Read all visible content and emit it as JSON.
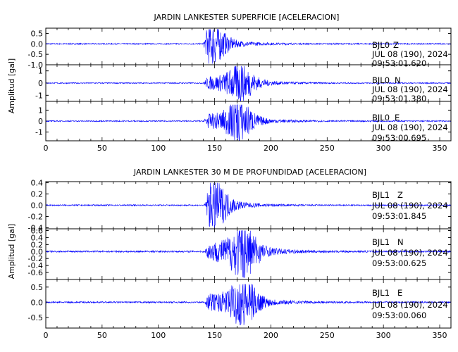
{
  "chart_data": [
    {
      "type": "line",
      "title": "JARDIN LANKESTER SUPERFICIE [ACELERACION]",
      "ylabel": "Amplitud [gal]",
      "xlim": [
        0,
        360
      ],
      "x_ticks": [
        "0",
        "50",
        "100",
        "150",
        "200",
        "250",
        "300",
        "350"
      ],
      "panels": [
        {
          "station": "BJL0",
          "component": "Z",
          "date": "JUL 08 (190), 2024",
          "time": "09:53:01.620",
          "ylim": [
            -1.0,
            0.75
          ],
          "y_ticks": [
            "0.5",
            "0.0",
            "-0.5",
            "-1.0"
          ],
          "onset_s": 140,
          "peak_s": 148,
          "peak_pos": 0.7,
          "peak_neg": -0.95
        },
        {
          "station": "BJL0",
          "component": "N",
          "date": "JUL 08 (190), 2024",
          "time": "09:53:01.380",
          "ylim": [
            -1.5,
            1.5
          ],
          "y_ticks": [
            "1",
            "0",
            "-1"
          ],
          "onset_s": 140,
          "peak_s": 173,
          "peak_pos": 1.4,
          "peak_neg": -1.45
        },
        {
          "station": "BJL0",
          "component": "E",
          "date": "JUL 08 (190), 2024",
          "time": "09:53:00.695",
          "ylim": [
            -1.8,
            1.8
          ],
          "y_ticks": [
            "1",
            "0",
            "-1"
          ],
          "onset_s": 140,
          "peak_s": 172,
          "peak_pos": 1.5,
          "peak_neg": -1.75
        }
      ]
    },
    {
      "type": "line",
      "title": "JARDIN LANKESTER 30 M DE PROFUNDIDAD [ACELERACION]",
      "ylabel": "Amplitud [gal]",
      "xlim": [
        0,
        360
      ],
      "x_ticks": [
        "0",
        "50",
        "100",
        "150",
        "200",
        "250",
        "300",
        "350"
      ],
      "panels": [
        {
          "station": "BJL1",
          "component": "Z",
          "date": "JUL 08 (190), 2024",
          "time": "09:53:01.845",
          "ylim": [
            -0.42,
            0.42
          ],
          "y_ticks": [
            "0.4",
            "0.2",
            "0.0",
            "-0.2",
            "-0.4"
          ],
          "onset_s": 141,
          "peak_s": 150,
          "peak_pos": 0.4,
          "peak_neg": -0.4
        },
        {
          "station": "BJL1",
          "component": "N",
          "date": "JUL 08 (190), 2024",
          "time": "09:53:00.625",
          "ylim": [
            -0.8,
            0.65
          ],
          "y_ticks": [
            "0.6",
            "0.4",
            "0.2",
            "0.0",
            "-0.2",
            "-0.4",
            "-0.6"
          ],
          "onset_s": 141,
          "peak_s": 176,
          "peak_pos": 0.6,
          "peak_neg": -0.75
        },
        {
          "station": "BJL1",
          "component": "E",
          "date": "JUL 08 (190), 2024",
          "time": "09:53:00.060",
          "ylim": [
            -0.85,
            0.75
          ],
          "y_ticks": [
            "0.5",
            "0.0",
            "-0.5"
          ],
          "onset_s": 141,
          "peak_s": 176,
          "peak_pos": 0.6,
          "peak_neg": -0.75
        }
      ]
    }
  ],
  "colors": {
    "trace": "#0000ff",
    "axes": "#000000"
  }
}
